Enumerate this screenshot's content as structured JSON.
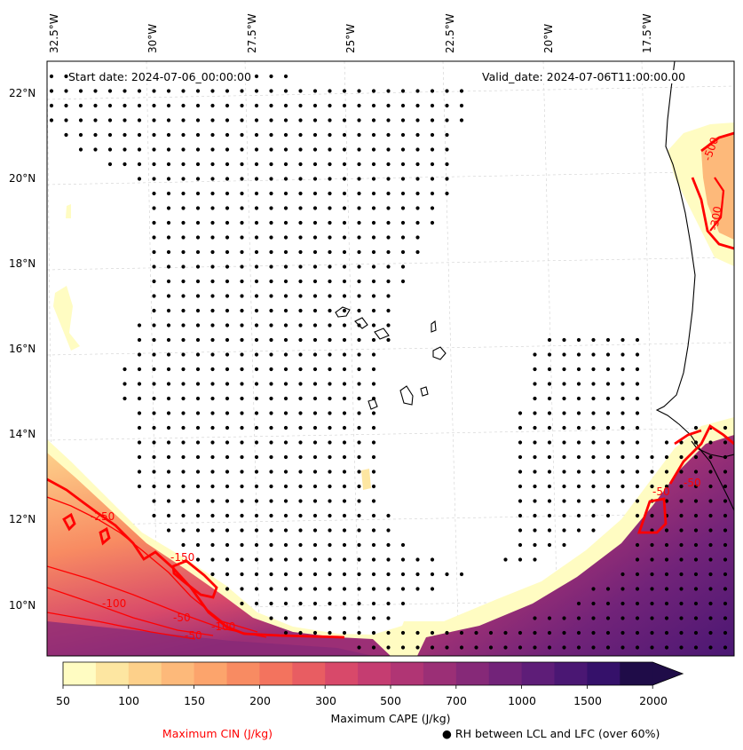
{
  "map": {
    "start_date_label": "Start date: 2024-07-06_00:00:00",
    "valid_date_label": "Valid_date: 2024-07-06T11:00:00.00",
    "longitude_labels": [
      "32.5°W",
      "30°W",
      "27.5°W",
      "25°W",
      "22.5°W",
      "20°W",
      "17.5°W"
    ],
    "latitude_labels": [
      "22°N",
      "20°N",
      "18°N",
      "16°N",
      "14°N",
      "12°N",
      "10°N"
    ],
    "extent": {
      "lon_min": -32.5,
      "lon_max": -14.5,
      "lat_min": 9,
      "lat_max": 22.7
    },
    "cin_contour_labels": [
      "-50",
      "-250",
      "-150",
      "-100",
      "-50",
      "-50",
      "-100",
      "-50",
      "-500",
      "-300"
    ]
  },
  "colorbar": {
    "title": "Maximum CAPE (J/kg)",
    "tick_labels": [
      "50",
      "100",
      "150",
      "200",
      "300",
      "500",
      "700",
      "1000",
      "1500",
      "2000"
    ],
    "colors": [
      "#fffcc2",
      "#fde6a1",
      "#fdd08a",
      "#fdb97a",
      "#fca46c",
      "#f88b62",
      "#f3735e",
      "#e85d62",
      "#d8496a",
      "#c53d71",
      "#b03574",
      "#9b2f76",
      "#862978",
      "#722379",
      "#5e1d78",
      "#4a1773",
      "#35116a",
      "#1f0c48"
    ]
  },
  "legend": {
    "cin_label": "Maximum CIN (J/kg)",
    "rh_label": "● RH between LCL and LFC (over 60%)"
  }
}
